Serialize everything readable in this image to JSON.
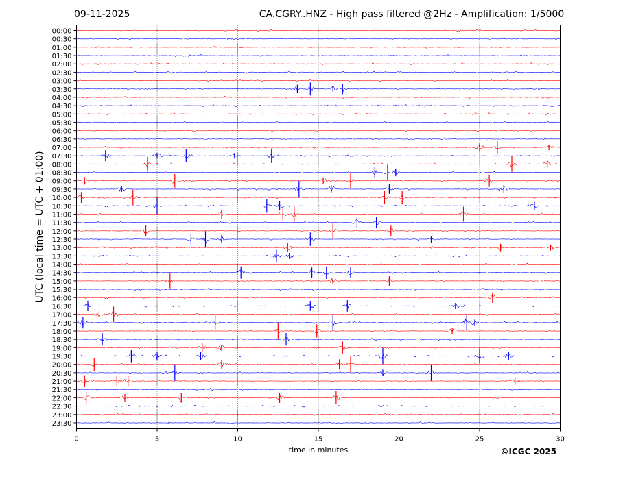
{
  "header": {
    "date": "09-11-2025",
    "title": "CA.CGRY..HNZ - High pass filtered @2Hz - Amplification: 1/5000"
  },
  "copyright": "©ICGC 2025",
  "chart_data": {
    "type": "line",
    "title": "CA.CGRY..HNZ - High pass filtered @2Hz - Amplification: 1/5000",
    "date": "09-11-2025",
    "xlabel": "time in minutes",
    "ylabel": "UTC (local time = UTC + 01:00)",
    "xlim": [
      0,
      30
    ],
    "xticks": [
      0,
      5,
      10,
      15,
      20,
      25,
      30
    ],
    "xgrid_dotted": [
      5,
      10,
      15,
      20,
      25
    ],
    "rows": [
      "00:00",
      "00:30",
      "01:00",
      "01:30",
      "02:00",
      "02:30",
      "03:00",
      "03:30",
      "04:00",
      "04:30",
      "05:00",
      "05:30",
      "06:00",
      "06:30",
      "07:00",
      "07:30",
      "08:00",
      "08:30",
      "09:00",
      "09:30",
      "10:00",
      "10:30",
      "11:00",
      "11:30",
      "12:00",
      "12:30",
      "13:00",
      "13:30",
      "14:00",
      "14:30",
      "15:00",
      "15:30",
      "16:00",
      "16:30",
      "17:00",
      "17:30",
      "18:00",
      "18:30",
      "19:00",
      "19:30",
      "20:00",
      "20:30",
      "21:00",
      "21:30",
      "22:00",
      "22:30",
      "23:00",
      "23:30"
    ],
    "colors": {
      "even_rows": "#ff0000",
      "odd_rows": "#0000ff"
    },
    "events": [
      {
        "row": "03:30",
        "minutes": [
          13.7,
          14.5,
          15.9,
          16.5
        ]
      },
      {
        "row": "07:00",
        "minutes": [
          25.0,
          26.1,
          29.3
        ]
      },
      {
        "row": "07:30",
        "minutes": [
          1.8,
          5.0,
          6.8,
          9.8,
          12.1
        ]
      },
      {
        "row": "08:00",
        "minutes": [
          4.4,
          27.0,
          29.2
        ]
      },
      {
        "row": "08:30",
        "minutes": [
          18.5,
          19.3,
          19.8
        ]
      },
      {
        "row": "09:00",
        "minutes": [
          0.5,
          6.1,
          15.3,
          17.0,
          25.6
        ]
      },
      {
        "row": "09:30",
        "minutes": [
          2.8,
          13.8,
          15.8,
          19.4,
          26.5
        ]
      },
      {
        "row": "10:00",
        "minutes": [
          0.3,
          3.5,
          19.1,
          20.2
        ]
      },
      {
        "row": "10:30",
        "minutes": [
          5.0,
          11.8,
          12.6,
          28.4
        ]
      },
      {
        "row": "11:00",
        "minutes": [
          9.0,
          12.8,
          13.5,
          24.0
        ]
      },
      {
        "row": "11:30",
        "minutes": [
          17.4,
          18.6
        ]
      },
      {
        "row": "12:00",
        "minutes": [
          4.3,
          15.9,
          19.5
        ]
      },
      {
        "row": "12:30",
        "minutes": [
          7.1,
          8.0,
          9.0,
          14.5,
          22.0
        ]
      },
      {
        "row": "13:00",
        "minutes": [
          13.1,
          26.3,
          29.4
        ]
      },
      {
        "row": "13:30",
        "minutes": [
          12.4,
          13.2
        ]
      },
      {
        "row": "14:30",
        "minutes": [
          10.2,
          14.6,
          15.5,
          17.0
        ]
      },
      {
        "row": "15:00",
        "minutes": [
          5.8,
          15.9,
          19.4
        ]
      },
      {
        "row": "16:00",
        "minutes": [
          25.8
        ]
      },
      {
        "row": "16:30",
        "minutes": [
          0.7,
          14.5,
          16.8,
          23.5
        ]
      },
      {
        "row": "17:00",
        "minutes": [
          1.4,
          2.3
        ]
      },
      {
        "row": "17:30",
        "minutes": [
          0.4,
          8.6,
          15.9,
          24.2,
          24.7
        ]
      },
      {
        "row": "18:00",
        "minutes": [
          12.5,
          14.9,
          23.3
        ]
      },
      {
        "row": "18:30",
        "minutes": [
          1.6,
          13.0
        ]
      },
      {
        "row": "19:00",
        "minutes": [
          7.8,
          9.0,
          16.5
        ]
      },
      {
        "row": "19:30",
        "minutes": [
          3.4,
          5.0,
          7.7,
          19.0,
          25.0,
          26.8
        ]
      },
      {
        "row": "20:00",
        "minutes": [
          1.1,
          9.0,
          16.3,
          17.0
        ]
      },
      {
        "row": "20:30",
        "minutes": [
          6.1,
          19.0,
          22.0
        ]
      },
      {
        "row": "21:00",
        "minutes": [
          0.5,
          2.5,
          3.2,
          27.2
        ]
      },
      {
        "row": "22:00",
        "minutes": [
          0.6,
          3.0,
          6.5,
          12.6,
          16.1
        ]
      }
    ]
  }
}
